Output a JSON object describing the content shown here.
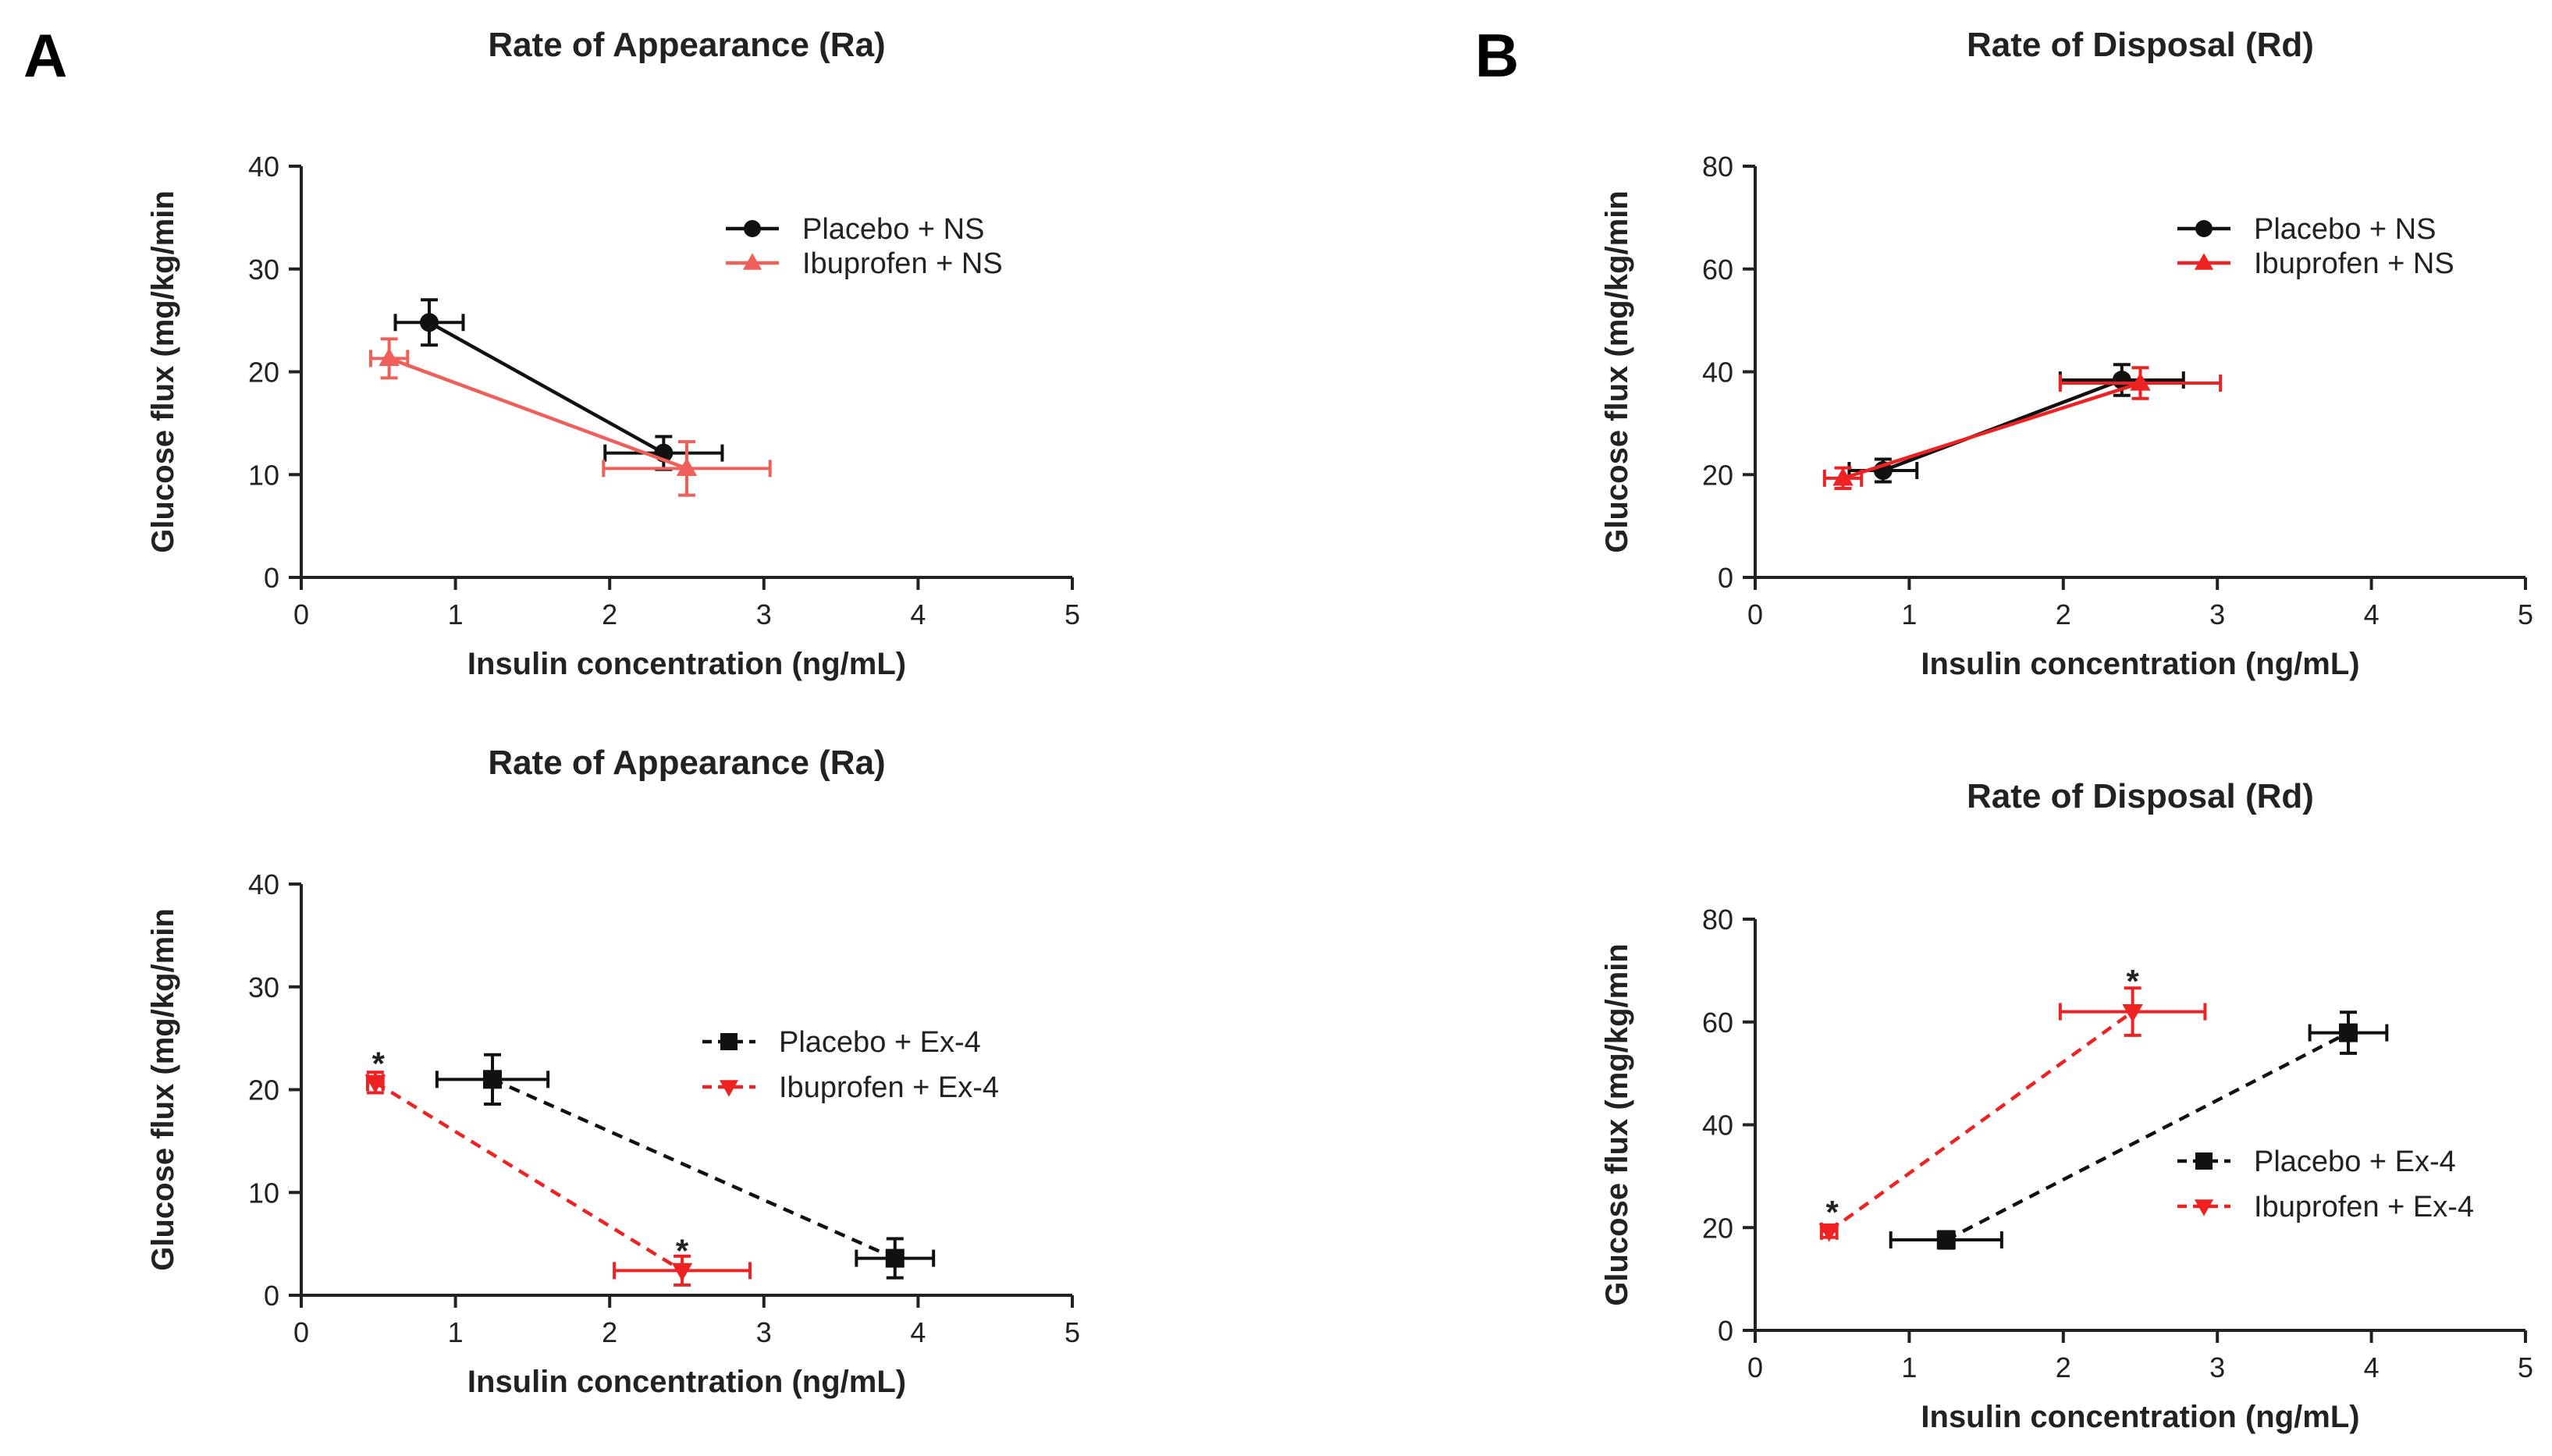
{
  "panels": [
    {
      "letter": "A"
    },
    {
      "letter": "B"
    }
  ],
  "colors": {
    "black": "#111111",
    "light_red": "#f0605a",
    "red": "#ee2222"
  },
  "chart_data": [
    {
      "type": "scatter",
      "panel": "A",
      "position": "top-left",
      "title": "Rate of  Appearance (Ra)",
      "xlabel": "Insulin concentration (ng/mL)",
      "ylabel": "Glucose flux (mg/kg/min",
      "xlim": [
        0,
        5
      ],
      "ylim": [
        0,
        40
      ],
      "xticks": [
        "0",
        "1",
        "2",
        "3",
        "4",
        "5"
      ],
      "yticks": [
        "0",
        "10",
        "20",
        "30",
        "40"
      ],
      "legend_placement": "top-right",
      "annotations": [],
      "series": [
        {
          "name": "Placebo + NS",
          "color": "#111111",
          "marker": "circle",
          "dashed": false,
          "points": [
            {
              "x": 0.83,
              "y": 24.8,
              "xerr": 0.22,
              "yerr": 2.2
            },
            {
              "x": 2.35,
              "y": 12.1,
              "xerr": 0.38,
              "yerr": 1.6
            }
          ]
        },
        {
          "name": "Ibuprofen + NS",
          "color": "#f0605a",
          "marker": "triangle-up",
          "dashed": false,
          "points": [
            {
              "x": 0.57,
              "y": 21.3,
              "xerr": 0.12,
              "yerr": 1.9
            },
            {
              "x": 2.5,
              "y": 10.6,
              "xerr": 0.54,
              "yerr": 2.6
            }
          ]
        }
      ]
    },
    {
      "type": "scatter",
      "panel": "B",
      "position": "top-right",
      "title": "Rate of Disposal (Rd)",
      "xlabel": "Insulin concentration (ng/mL)",
      "ylabel": "Glucose flux (mg/kg/min",
      "xlim": [
        0,
        5
      ],
      "ylim": [
        0,
        80
      ],
      "xticks": [
        "0",
        "1",
        "2",
        "3",
        "4",
        "5"
      ],
      "yticks": [
        "0",
        "20",
        "40",
        "60",
        "80"
      ],
      "legend_placement": "top-right",
      "annotations": [],
      "series": [
        {
          "name": "Placebo + NS",
          "color": "#111111",
          "marker": "circle",
          "dashed": false,
          "points": [
            {
              "x": 0.83,
              "y": 20.8,
              "xerr": 0.22,
              "yerr": 2.2
            },
            {
              "x": 2.38,
              "y": 38.4,
              "xerr": 0.4,
              "yerr": 3.0
            }
          ]
        },
        {
          "name": "Ibuprofen + NS",
          "color": "#ee2222",
          "marker": "triangle-up",
          "dashed": false,
          "points": [
            {
              "x": 0.57,
              "y": 19.3,
              "xerr": 0.12,
              "yerr": 2.0
            },
            {
              "x": 2.5,
              "y": 37.8,
              "xerr": 0.52,
              "yerr": 3.0
            }
          ]
        }
      ]
    },
    {
      "type": "scatter",
      "panel": "A",
      "position": "bottom-left",
      "title": "Rate of  Appearance (Ra)",
      "xlabel": "Insulin concentration (ng/mL)",
      "ylabel": "Glucose flux (mg/kg/min",
      "xlim": [
        0,
        5
      ],
      "ylim": [
        0,
        40
      ],
      "xticks": [
        "0",
        "1",
        "2",
        "3",
        "4",
        "5"
      ],
      "yticks": [
        "0",
        "10",
        "20",
        "30",
        "40"
      ],
      "legend_placement": "center-right",
      "annotations": [
        {
          "text": "*",
          "x": 0.5,
          "y": 22.8
        },
        {
          "text": "*",
          "x": 2.47,
          "y": 4.6
        }
      ],
      "series": [
        {
          "name": "Placebo + Ex-4",
          "color": "#111111",
          "marker": "square",
          "dashed": true,
          "points": [
            {
              "x": 1.24,
              "y": 21.0,
              "xerr": 0.36,
              "yerr": 2.4
            },
            {
              "x": 3.85,
              "y": 3.6,
              "xerr": 0.25,
              "yerr": 1.9
            }
          ]
        },
        {
          "name": "Ibuprofen + Ex-4",
          "color": "#ee2222",
          "marker": "triangle-down",
          "dashed": true,
          "points": [
            {
              "x": 0.48,
              "y": 20.7,
              "xerr": 0.05,
              "yerr": 1.0
            },
            {
              "x": 2.47,
              "y": 2.4,
              "xerr": 0.44,
              "yerr": 1.4
            }
          ]
        }
      ]
    },
    {
      "type": "scatter",
      "panel": "B",
      "position": "bottom-right",
      "title": "Rate of Disposal (Rd)",
      "xlabel": "Insulin concentration (ng/mL)",
      "ylabel": "Glucose flux (mg/kg/min",
      "xlim": [
        0,
        5
      ],
      "ylim": [
        0,
        80
      ],
      "xticks": [
        "0",
        "1",
        "2",
        "3",
        "4",
        "5"
      ],
      "yticks": [
        "0",
        "20",
        "40",
        "60",
        "80"
      ],
      "legend_placement": "center-right",
      "annotations": [
        {
          "text": "*",
          "x": 0.5,
          "y": 23.5
        },
        {
          "text": "*",
          "x": 2.45,
          "y": 68.5
        }
      ],
      "series": [
        {
          "name": "Placebo + Ex-4",
          "color": "#111111",
          "marker": "square",
          "dashed": true,
          "points": [
            {
              "x": 1.24,
              "y": 17.6,
              "xerr": 0.36,
              "yerr": 1.6
            },
            {
              "x": 3.85,
              "y": 57.9,
              "xerr": 0.25,
              "yerr": 4.0
            }
          ]
        },
        {
          "name": "Ibuprofen + Ex-4",
          "color": "#ee2222",
          "marker": "triangle-down",
          "dashed": true,
          "points": [
            {
              "x": 0.48,
              "y": 19.3,
              "xerr": 0.05,
              "yerr": 1.2
            },
            {
              "x": 2.45,
              "y": 62.0,
              "xerr": 0.47,
              "yerr": 4.6
            }
          ]
        }
      ]
    }
  ]
}
